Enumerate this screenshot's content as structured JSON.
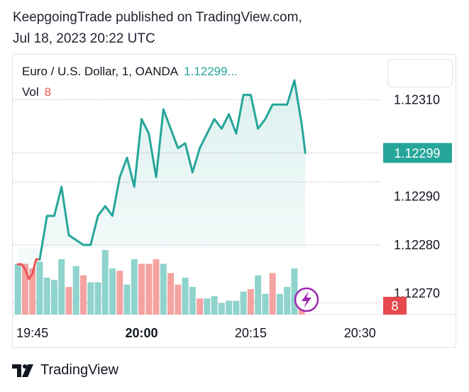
{
  "publisher": {
    "line1": "KeepgoingTrade published on TradingView.com,",
    "line2": "Jul 18, 2023 20:22 UTC"
  },
  "legend": {
    "symbol": "Euro / U.S. Dollar, 1, OANDA",
    "last_price": "1.12299...",
    "vol_label": "Vol",
    "vol_value": "8"
  },
  "brand": {
    "name": "TradingView"
  },
  "colors": {
    "up": "#26a69a",
    "down": "#ef5350",
    "vol_up": "#8fd3cd",
    "vol_down": "#f4a3a1",
    "grid": "#b97ea8",
    "badge_vol": "#e5484d",
    "lightning": "#9c27b0"
  },
  "chart_data": {
    "type": "line",
    "title": "Euro / U.S. Dollar, 1, OANDA",
    "x_ticks": [
      {
        "label": "19:45",
        "bold": false,
        "t": 0
      },
      {
        "label": "20:00",
        "bold": true,
        "t": 15
      },
      {
        "label": "20:15",
        "bold": false,
        "t": 30
      },
      {
        "label": "20:30",
        "bold": false,
        "t": 45
      }
    ],
    "y_ticks": [
      1.1231,
      1.1229,
      1.1228,
      1.1227
    ],
    "y_tick_labels": [
      "1.12310",
      "1.12290",
      "1.12280",
      "1.12270"
    ],
    "ylim": [
      1.122656,
      1.123193
    ],
    "xlim_minutes": [
      -2.7,
      48.0
    ],
    "price_line_value": 1.12299,
    "price_line_label": "1.12299",
    "vol_badge_label": "8",
    "grid_levels": [
      1.1231,
      1.12299,
      1.12293,
      1.1228,
      1.12268
    ],
    "price": {
      "t": [
        -2,
        -1.5,
        -1,
        -0.5,
        0,
        0.5,
        1,
        2,
        3,
        4,
        5,
        6,
        7,
        8,
        9,
        10,
        11,
        12,
        13,
        14,
        15,
        16,
        17,
        18,
        19,
        20,
        21,
        22,
        23,
        24,
        25,
        26,
        27,
        28,
        29,
        30,
        31,
        32,
        33,
        34,
        35,
        36,
        37,
        37.5
      ],
      "values": [
        1.12276,
        1.12276,
        1.12275,
        1.12273,
        1.12274,
        1.12277,
        1.12277,
        1.12286,
        1.12286,
        1.12292,
        1.12282,
        1.12281,
        1.1228,
        1.1228,
        1.12286,
        1.12288,
        1.12286,
        1.12294,
        1.12298,
        1.12292,
        1.12306,
        1.12303,
        1.12294,
        1.12308,
        1.12304,
        1.123,
        1.12301,
        1.12295,
        1.123,
        1.12303,
        1.12306,
        1.12304,
        1.12307,
        1.12303,
        1.12311,
        1.12311,
        1.12304,
        1.12306,
        1.12309,
        1.12309,
        1.12309,
        1.12314,
        1.12305,
        1.12299
      ]
    },
    "volume": {
      "t": [
        -2,
        -1,
        0,
        1,
        2,
        3,
        4,
        5,
        6,
        7,
        8,
        9,
        10,
        11,
        12,
        13,
        14,
        15,
        16,
        17,
        18,
        19,
        20,
        21,
        22,
        23,
        24,
        25,
        26,
        27,
        28,
        29,
        30,
        31,
        32,
        33,
        34,
        35,
        36,
        37
      ],
      "values": [
        22,
        22,
        20,
        23,
        16,
        15,
        24,
        12,
        21,
        17,
        14,
        14,
        28,
        20,
        19,
        13,
        24,
        22,
        22,
        24,
        22,
        18,
        13,
        16,
        12,
        7,
        7,
        8,
        5,
        6,
        6,
        10,
        11,
        17,
        9,
        18,
        9,
        12,
        20,
        8
      ],
      "up": [
        true,
        false,
        false,
        true,
        true,
        true,
        true,
        false,
        true,
        false,
        true,
        true,
        true,
        true,
        false,
        true,
        true,
        false,
        false,
        false,
        true,
        false,
        false,
        true,
        true,
        false,
        true,
        true,
        true,
        true,
        true,
        true,
        false,
        true,
        true,
        false,
        true,
        true,
        true,
        false
      ]
    }
  }
}
